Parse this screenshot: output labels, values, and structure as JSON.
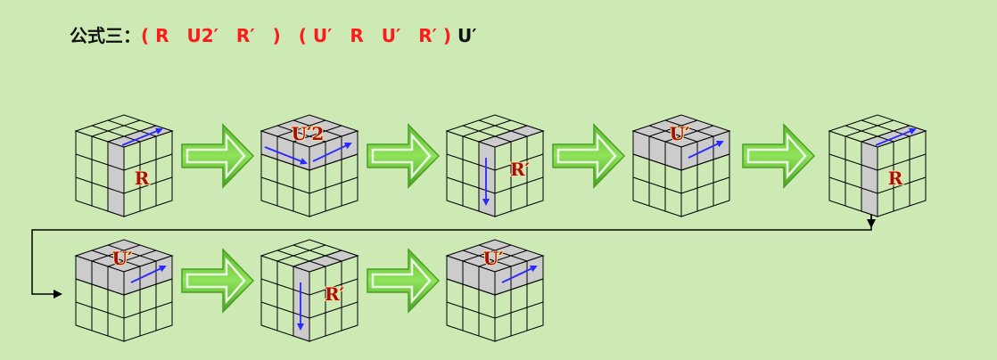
{
  "title": {
    "prefix": "公式三：",
    "seg1": "( R　U2′　R′　)　( U′　R　U′　R′ )",
    "seg2": "U′"
  },
  "steps": [
    {
      "label": "R",
      "face": "right-col"
    },
    {
      "label": "U′2",
      "face": "top-double"
    },
    {
      "label": "R′",
      "face": "right-col-down"
    },
    {
      "label": "U′",
      "face": "top"
    },
    {
      "label": "R",
      "face": "right-col"
    },
    {
      "label": "U′",
      "face": "top"
    },
    {
      "label": "R′",
      "face": "right-col-down"
    },
    {
      "label": "U′",
      "face": "top"
    }
  ],
  "colors": {
    "background": "#cdeab4",
    "highlight": "#cccccc",
    "arrow_fill": "#6cc83a",
    "move_arrow": "#2a2aff",
    "label": "#a01010"
  }
}
